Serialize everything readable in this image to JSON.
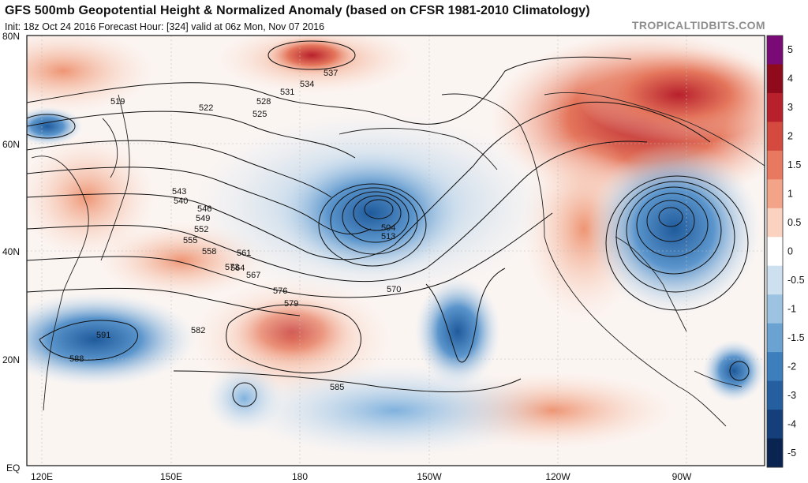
{
  "header": {
    "title": "GFS 500mb Geopotential Height & Normalized Anomaly (based on CFSR 1981-2010 Climatology)",
    "subtitle": "Init: 18z Oct 24 2016   Forecast Hour: [324]   valid at 06z Mon, Nov 07 2016",
    "brand": "TROPICALTIDBITS.COM"
  },
  "map": {
    "lat_labels": [
      "80N",
      "60N",
      "40N",
      "20N",
      "EQ"
    ],
    "lon_labels": [
      "120E",
      "150E",
      "180",
      "150W",
      "120W",
      "90W"
    ],
    "contour_labels": [
      "519",
      "522",
      "525",
      "528",
      "531",
      "534",
      "537",
      "540",
      "543",
      "546",
      "549",
      "552",
      "555",
      "558",
      "561",
      "564",
      "567",
      "570",
      "573",
      "576",
      "579",
      "582",
      "585",
      "588",
      "591",
      "504",
      "513"
    ]
  },
  "colorbar": {
    "labels": [
      "5",
      "4",
      "3",
      "2",
      "1.5",
      "1",
      "0.5",
      "0",
      "-0.5",
      "-1",
      "-1.5",
      "-2",
      "-3",
      "-4",
      "-5"
    ],
    "colors": [
      "#7a0a76",
      "#8f0b1c",
      "#b8202c",
      "#d44a3e",
      "#e8785f",
      "#f3a488",
      "#fbd2c0",
      "#ffffff",
      "#cde0ef",
      "#9cc3e2",
      "#6aa2d2",
      "#3d7fbd",
      "#255f9f",
      "#143f7a",
      "#0a2452"
    ]
  }
}
